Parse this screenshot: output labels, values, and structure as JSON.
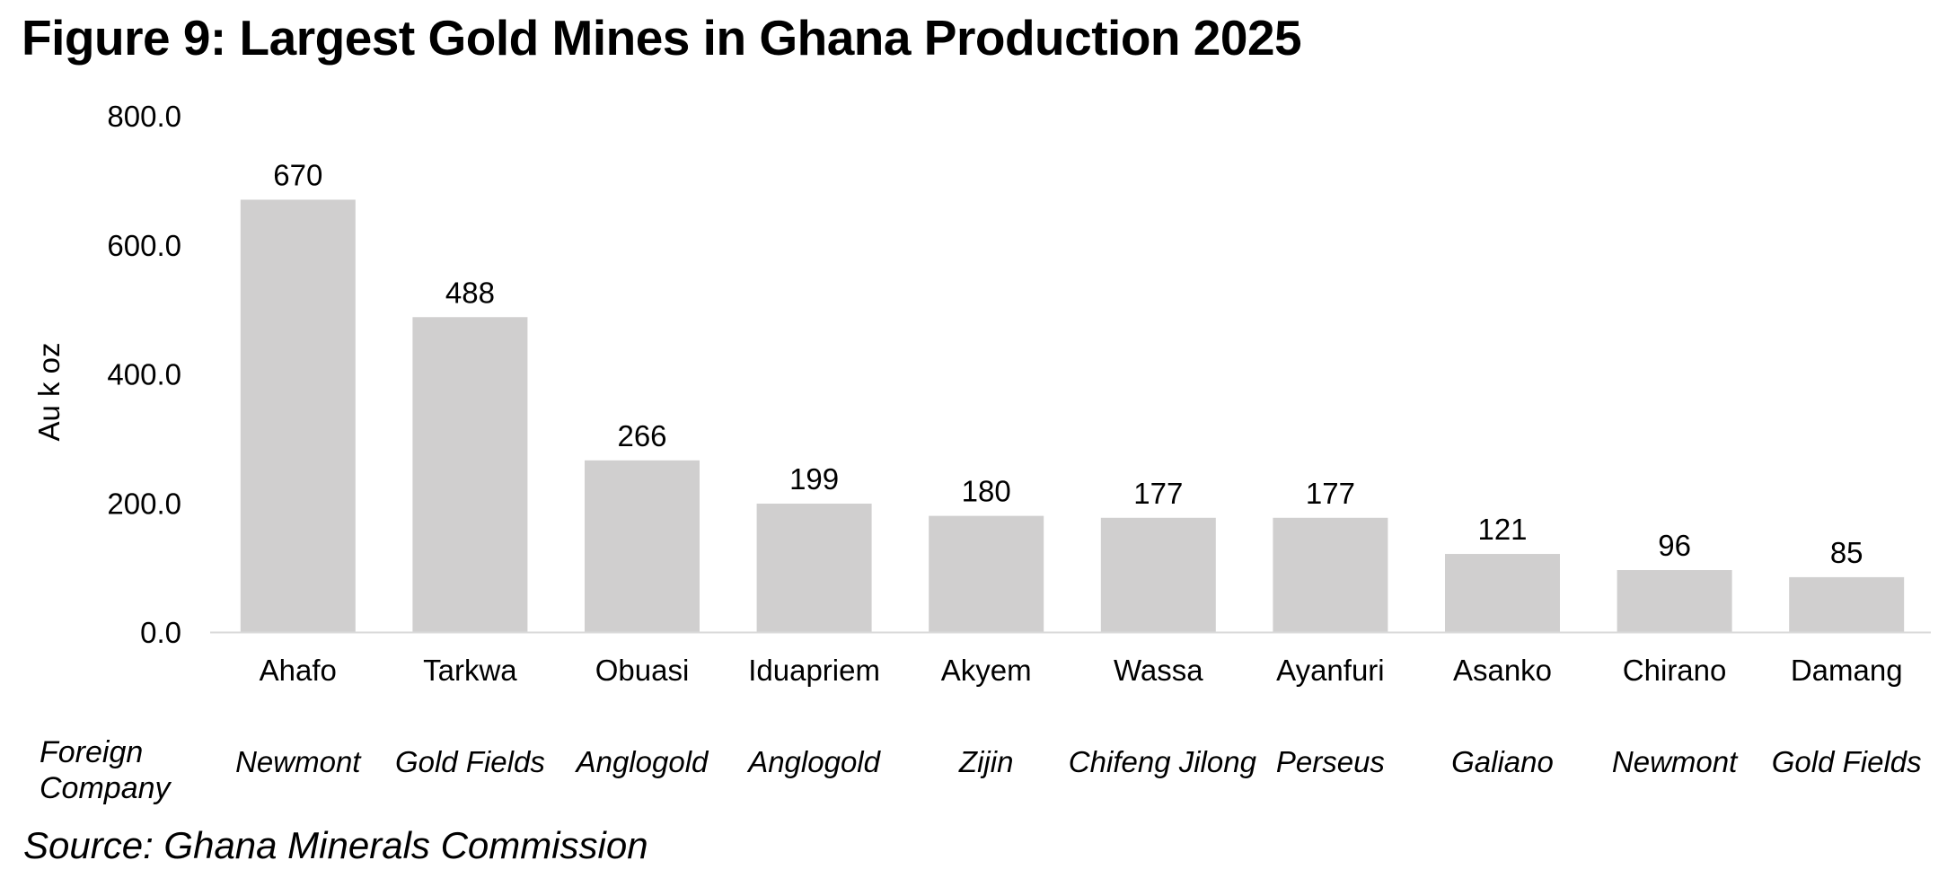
{
  "figure": {
    "title": "Figure 9: Largest Gold Mines in Ghana Production 2025",
    "source": "Source: Ghana Minerals Commission",
    "company_label_line1": "Foreign",
    "company_label_line2": "Company"
  },
  "companies": [
    "Newmont",
    "Gold Fields",
    "Anglogold",
    "Anglogold",
    "Zijin",
    "Chifeng Jilong",
    "Perseus",
    "Galiano",
    "Newmont",
    "Gold Fields"
  ],
  "colors": {
    "bar": "#d0cfcf",
    "axis": "#d9d9d9",
    "text": "#000000"
  },
  "chart_data": {
    "type": "bar",
    "title": "Figure 9: Largest Gold Mines in Ghana Production 2025",
    "ylabel": "Au k oz",
    "xlabel": "",
    "categories": [
      "Ahafo",
      "Tarkwa",
      "Obuasi",
      "Iduapriem",
      "Akyem",
      "Wassa",
      "Ayanfuri",
      "Asanko",
      "Chirano",
      "Damang"
    ],
    "values": [
      670,
      488,
      266,
      199,
      180,
      177,
      177,
      121,
      96,
      85
    ],
    "data_labels": [
      "670",
      "488",
      "266",
      "199",
      "180",
      "177",
      "177",
      "121",
      "96",
      "85"
    ],
    "y_ticks": [
      0,
      200,
      400,
      600,
      800
    ],
    "y_tick_labels": [
      "0.0",
      "200.0",
      "400.0",
      "600.0",
      "800.0"
    ],
    "ylim": [
      0,
      800
    ],
    "grid": false,
    "legend": "none"
  }
}
